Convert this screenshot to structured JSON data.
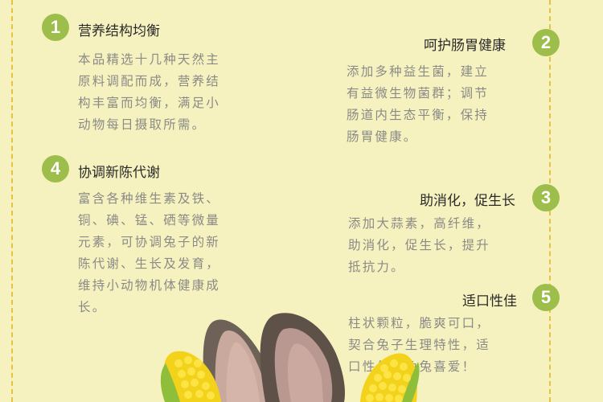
{
  "features": [
    {
      "number": "1",
      "title": "营养结构均衡",
      "lines": [
        "本品精选十几种天然主",
        "原料调配而成，营养结",
        "构丰富而均衡，满足小",
        "动物每日摄取所需。"
      ]
    },
    {
      "number": "2",
      "title": "呵护肠胃健康",
      "lines": [
        "添加多种益生菌，建立",
        "有益微生物菌群；调节",
        "肠道内生态平衡，保持",
        "肠胃健康。"
      ]
    },
    {
      "number": "4",
      "title": "协调新陈代谢",
      "lines": [
        "富含各种维生素及铁、",
        "铜、碘、锰、硒等微量",
        "元素，可协调兔子的新",
        "陈代谢、生长及发育，",
        "维持小动物机体健康成",
        "长。"
      ]
    },
    {
      "number": "3",
      "title": "助消化，促生长",
      "lines": [
        "添加大蒜素，高纤维，",
        "助消化，促生长，提升",
        "抵抗力。"
      ]
    },
    {
      "number": "5",
      "title": "适口性佳",
      "lines": [
        "柱状颗粒，脆爽可口，",
        "契合兔子生理特性，适",
        "口性佳，兔兔喜爱！"
      ]
    }
  ],
  "colors": {
    "background": "#f6f2c0",
    "badge": "#9dbe4a",
    "dashed_line": "#e8c23e"
  }
}
